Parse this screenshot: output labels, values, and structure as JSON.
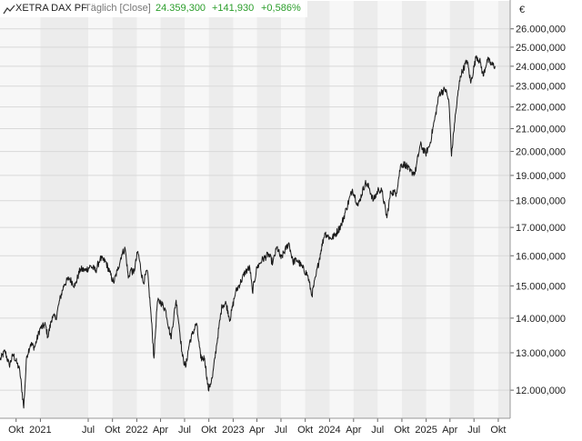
{
  "header": {
    "instrument": "XETRA DAX PF",
    "interval": "Täglich [Close]",
    "last": "24.359,300",
    "change_abs": "+141,930",
    "change_pct": "+0,586%",
    "icon": "line-chart-icon"
  },
  "colors": {
    "plot_bg": "#f7f7f7",
    "band": "#ececec",
    "grid": "#d9d9d9",
    "line": "#1a1a1a",
    "positive": "#2a9d2a",
    "muted": "#777777"
  },
  "chart_data": {
    "type": "line",
    "currency_unit": "€",
    "ylim": [
      11300000,
      26600000
    ],
    "xlim": [
      "2020-08-01",
      "2025-11-15"
    ],
    "y_ticks": [
      {
        "value": 12000000,
        "label": "12.000,000"
      },
      {
        "value": 13000000,
        "label": "13.000,000"
      },
      {
        "value": 14000000,
        "label": "14.000,000"
      },
      {
        "value": 15000000,
        "label": "15.000,000"
      },
      {
        "value": 16000000,
        "label": "16.000,000"
      },
      {
        "value": 17000000,
        "label": "17.000,000"
      },
      {
        "value": 18000000,
        "label": "18.000,000"
      },
      {
        "value": 19000000,
        "label": "19.000,000"
      },
      {
        "value": 20000000,
        "label": "20.000,000"
      },
      {
        "value": 21000000,
        "label": "21.000,000"
      },
      {
        "value": 22000000,
        "label": "22.000,000"
      },
      {
        "value": 23000000,
        "label": "23.000,000"
      },
      {
        "value": 24000000,
        "label": "24.000,000"
      },
      {
        "value": 25000000,
        "label": "25.000,000"
      },
      {
        "value": 26000000,
        "label": "26.000,000"
      }
    ],
    "x_ticks": [
      {
        "date": "2020-10-01",
        "label": "Okt"
      },
      {
        "date": "2021-01-01",
        "label": "2021"
      },
      {
        "date": "2021-07-01",
        "label": "Jul"
      },
      {
        "date": "2021-10-01",
        "label": "Okt"
      },
      {
        "date": "2022-01-01",
        "label": "2022"
      },
      {
        "date": "2022-04-01",
        "label": "Apr"
      },
      {
        "date": "2022-07-01",
        "label": "Jul"
      },
      {
        "date": "2022-10-01",
        "label": "Okt"
      },
      {
        "date": "2023-01-01",
        "label": "2023"
      },
      {
        "date": "2023-04-01",
        "label": "Apr"
      },
      {
        "date": "2023-07-01",
        "label": "Jul"
      },
      {
        "date": "2023-10-01",
        "label": "Okt"
      },
      {
        "date": "2024-01-01",
        "label": "2024"
      },
      {
        "date": "2024-04-01",
        "label": "Apr"
      },
      {
        "date": "2024-07-01",
        "label": "Jul"
      },
      {
        "date": "2024-10-01",
        "label": "Okt"
      },
      {
        "date": "2025-01-01",
        "label": "2025"
      },
      {
        "date": "2025-04-01",
        "label": "Apr"
      },
      {
        "date": "2025-07-01",
        "label": "Jul"
      },
      {
        "date": "2025-10-01",
        "label": "Okt"
      }
    ],
    "series": [
      {
        "color": "#1a1a1a",
        "points": [
          [
            "2020-08-01",
            12800000
          ],
          [
            "2020-08-20",
            13050000
          ],
          [
            "2020-09-05",
            12650000
          ],
          [
            "2020-09-20",
            12950000
          ],
          [
            "2020-10-05",
            12700000
          ],
          [
            "2020-10-15",
            12500000
          ],
          [
            "2020-10-30",
            11550000
          ],
          [
            "2020-11-10",
            12900000
          ],
          [
            "2020-11-25",
            13250000
          ],
          [
            "2020-12-10",
            13150000
          ],
          [
            "2020-12-31",
            13700000
          ],
          [
            "2021-01-20",
            13800000
          ],
          [
            "2021-01-29",
            13450000
          ],
          [
            "2021-02-15",
            14050000
          ],
          [
            "2021-03-01",
            14000000
          ],
          [
            "2021-03-15",
            14550000
          ],
          [
            "2021-04-01",
            15050000
          ],
          [
            "2021-04-20",
            15250000
          ],
          [
            "2021-05-12",
            15000000
          ],
          [
            "2021-06-01",
            15550000
          ],
          [
            "2021-06-20",
            15500000
          ],
          [
            "2021-07-10",
            15650000
          ],
          [
            "2021-07-30",
            15500000
          ],
          [
            "2021-08-15",
            15900000
          ],
          [
            "2021-09-05",
            15800000
          ],
          [
            "2021-09-20",
            15450000
          ],
          [
            "2021-10-05",
            15100000
          ],
          [
            "2021-10-20",
            15500000
          ],
          [
            "2021-11-05",
            16050000
          ],
          [
            "2021-11-18",
            16250000
          ],
          [
            "2021-11-30",
            15250000
          ],
          [
            "2021-12-10",
            15550000
          ],
          [
            "2021-12-20",
            15400000
          ],
          [
            "2022-01-05",
            16150000
          ],
          [
            "2022-01-25",
            15100000
          ],
          [
            "2022-02-10",
            15500000
          ],
          [
            "2022-02-24",
            14100000
          ],
          [
            "2022-03-07",
            12850000
          ],
          [
            "2022-03-20",
            14500000
          ],
          [
            "2022-04-01",
            14500000
          ],
          [
            "2022-04-20",
            14250000
          ],
          [
            "2022-05-10",
            13400000
          ],
          [
            "2022-05-30",
            14550000
          ],
          [
            "2022-06-10",
            13800000
          ],
          [
            "2022-06-23",
            12900000
          ],
          [
            "2022-07-05",
            12600000
          ],
          [
            "2022-07-20",
            13300000
          ],
          [
            "2022-08-15",
            13850000
          ],
          [
            "2022-08-31",
            12850000
          ],
          [
            "2022-09-15",
            12850000
          ],
          [
            "2022-09-29",
            12000000
          ],
          [
            "2022-10-15",
            12350000
          ],
          [
            "2022-10-31",
            13250000
          ],
          [
            "2022-11-20",
            14400000
          ],
          [
            "2022-12-05",
            14450000
          ],
          [
            "2022-12-20",
            13950000
          ],
          [
            "2023-01-10",
            14800000
          ],
          [
            "2023-01-31",
            15150000
          ],
          [
            "2023-02-15",
            15450000
          ],
          [
            "2023-03-05",
            15600000
          ],
          [
            "2023-03-15",
            14800000
          ],
          [
            "2023-04-01",
            15600000
          ],
          [
            "2023-04-20",
            15850000
          ],
          [
            "2023-05-15",
            16050000
          ],
          [
            "2023-05-31",
            15750000
          ],
          [
            "2023-06-16",
            16300000
          ],
          [
            "2023-07-01",
            15900000
          ],
          [
            "2023-07-31",
            16450000
          ],
          [
            "2023-08-15",
            15800000
          ],
          [
            "2023-09-01",
            15850000
          ],
          [
            "2023-09-20",
            15600000
          ],
          [
            "2023-10-10",
            15350000
          ],
          [
            "2023-10-26",
            14700000
          ],
          [
            "2023-11-10",
            15300000
          ],
          [
            "2023-11-30",
            16200000
          ],
          [
            "2023-12-14",
            16800000
          ],
          [
            "2024-01-05",
            16600000
          ],
          [
            "2024-01-20",
            16700000
          ],
          [
            "2024-02-15",
            17100000
          ],
          [
            "2024-03-05",
            17700000
          ],
          [
            "2024-03-28",
            18450000
          ],
          [
            "2024-04-18",
            17800000
          ],
          [
            "2024-05-15",
            18700000
          ],
          [
            "2024-05-30",
            18500000
          ],
          [
            "2024-06-15",
            18000000
          ],
          [
            "2024-07-05",
            18450000
          ],
          [
            "2024-07-18",
            18350000
          ],
          [
            "2024-08-05",
            17350000
          ],
          [
            "2024-08-20",
            18350000
          ],
          [
            "2024-09-10",
            18300000
          ],
          [
            "2024-09-27",
            19450000
          ],
          [
            "2024-10-15",
            19450000
          ],
          [
            "2024-11-01",
            19150000
          ],
          [
            "2024-11-20",
            19100000
          ],
          [
            "2024-12-10",
            20300000
          ],
          [
            "2024-12-30",
            19900000
          ],
          [
            "2025-01-15",
            20300000
          ],
          [
            "2025-02-05",
            21600000
          ],
          [
            "2025-02-20",
            22650000
          ],
          [
            "2025-03-15",
            22850000
          ],
          [
            "2025-03-28",
            22250000
          ],
          [
            "2025-04-07",
            19800000
          ],
          [
            "2025-04-18",
            21200000
          ],
          [
            "2025-05-10",
            23500000
          ],
          [
            "2025-06-05",
            24300000
          ],
          [
            "2025-06-19",
            23150000
          ],
          [
            "2025-07-10",
            24550000
          ],
          [
            "2025-07-25",
            24200000
          ],
          [
            "2025-08-05",
            23500000
          ],
          [
            "2025-08-20",
            24350000
          ],
          [
            "2025-09-05",
            24100000
          ],
          [
            "2025-09-20",
            24000000
          ]
        ]
      }
    ]
  }
}
